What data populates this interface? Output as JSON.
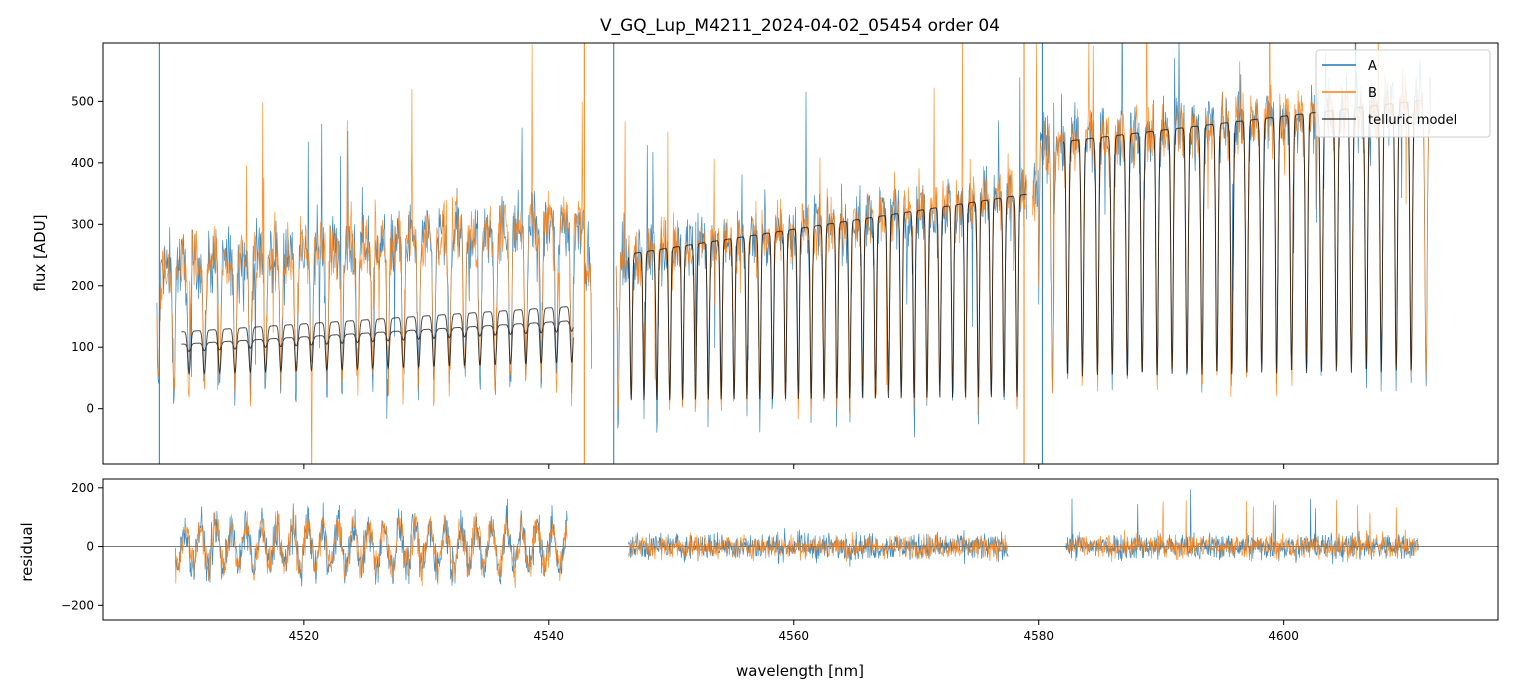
{
  "chart_data": [
    {
      "type": "line",
      "panel": "top",
      "title": "V_GQ_Lup_M4211_2024-04-02_05454  order 04",
      "xlabel": "",
      "ylabel": "flux [ADU]",
      "xlim": [
        4503.6,
        4617.5
      ],
      "ylim": [
        -90,
        595
      ],
      "yticks": [
        0,
        100,
        200,
        300,
        400,
        500
      ],
      "xticks": [
        4520,
        4540,
        4560,
        4580,
        4600
      ],
      "x_ticklabels_visible": false,
      "grid": false,
      "legend": {
        "position": "top-right",
        "entries": [
          "A",
          "B",
          "telluric model"
        ]
      },
      "series": [
        {
          "name": "A",
          "color": "#1f77b4",
          "style": "noisy spectrum, 4508–4612 nm, dense absorption lines, continuum rising from ~200 to ~500 ADU"
        },
        {
          "name": "B",
          "color": "#ff7f0e",
          "style": "noisy spectrum overlapping A"
        },
        {
          "name": "telluric model",
          "color": "#000000",
          "style": "smooth model, two curves in 4510–4542 nm (~105–190 ADU), single model beyond 4547 nm reaching ~530 ADU"
        }
      ]
    },
    {
      "type": "line",
      "panel": "bottom",
      "title": "",
      "xlabel": "wavelength [nm]",
      "ylabel": "residual",
      "xlim": [
        4503.6,
        4617.5
      ],
      "ylim": [
        -250,
        230
      ],
      "yticks": [
        -200,
        0,
        200
      ],
      "xticks": [
        4520,
        4540,
        4560,
        4580,
        4600
      ],
      "grid": false,
      "zero_line": true,
      "segments_nm": [
        [
          4509.5,
          4541.5
        ],
        [
          4546.5,
          4577.5
        ],
        [
          4582.2,
          4611
        ]
      ],
      "series": [
        {
          "name": "A",
          "color": "#1f77b4"
        },
        {
          "name": "B",
          "color": "#ff7f0e"
        }
      ]
    }
  ]
}
